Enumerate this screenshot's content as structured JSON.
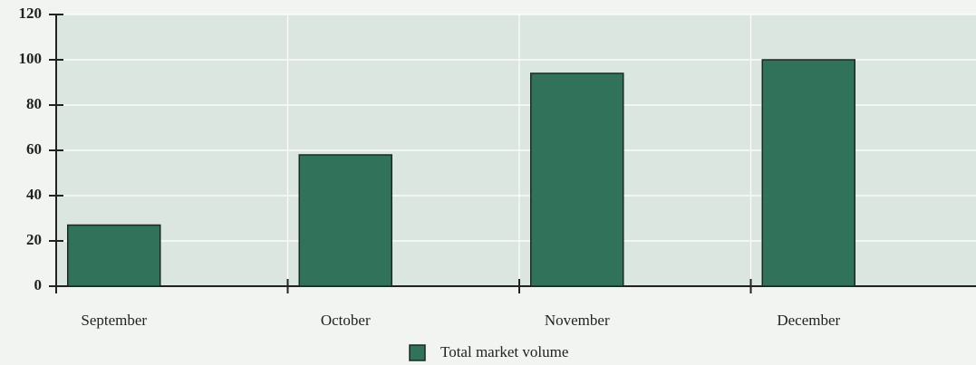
{
  "chart_data": {
    "type": "bar",
    "categories": [
      "September",
      "October",
      "November",
      "December"
    ],
    "series": [
      {
        "name": "Total market volume",
        "color": "#30735a",
        "values": [
          27,
          58,
          94,
          100
        ]
      }
    ],
    "ylim": [
      0,
      120
    ],
    "yticks": [
      0,
      20,
      40,
      60,
      80,
      100,
      120
    ],
    "grid": true,
    "legend": "bottom"
  }
}
